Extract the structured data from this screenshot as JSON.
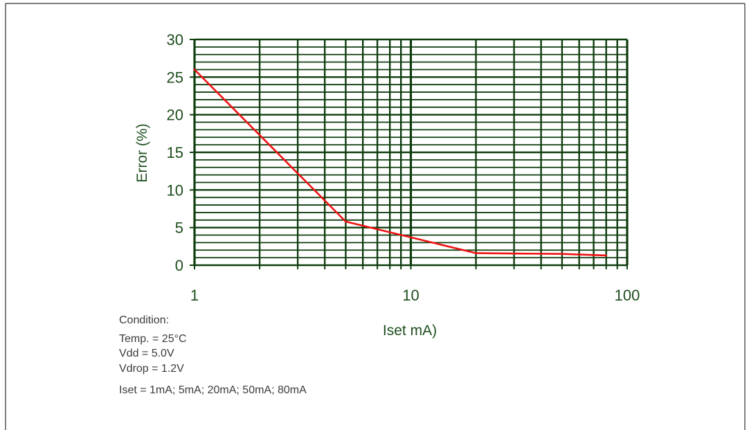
{
  "chart_data": {
    "type": "line",
    "title": "",
    "xlabel": "Iset mA)",
    "ylabel": "Error (%)",
    "x_scale": "log",
    "xlim": [
      1,
      100
    ],
    "ylim": [
      0,
      30
    ],
    "x_ticks": [
      "1",
      "10",
      "100"
    ],
    "y_ticks": [
      "0",
      "5",
      "10",
      "15",
      "20",
      "25",
      "30"
    ],
    "grid": true,
    "series": [
      {
        "x": [
          1,
          5,
          20,
          50,
          80
        ],
        "y": [
          26,
          5.8,
          1.6,
          1.5,
          1.3
        ],
        "color": "#ee1111"
      }
    ]
  },
  "condition": {
    "lines": [
      "Condition:",
      "Temp. = 25°C",
      "Vdd = 5.0V",
      "Vdrop = 1.2V",
      "Iset = 1mA; 5mA; 20mA; 50mA; 80mA"
    ]
  },
  "colors": {
    "grid": "#0e3d0e",
    "axis_text": "#1d4d1d",
    "line": "#ee1111"
  }
}
